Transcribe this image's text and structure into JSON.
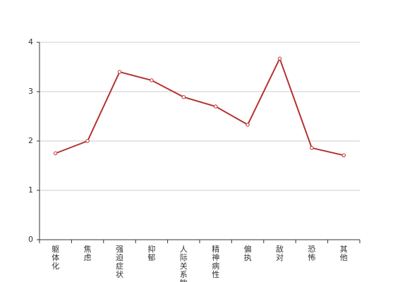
{
  "chart_data": {
    "type": "line",
    "categories": [
      "躯体化",
      "焦虑",
      "强迫症状",
      "抑郁",
      "人际关系敏感",
      "精神病性",
      "偏执",
      "敌对",
      "恐怖",
      "其他"
    ],
    "series": [
      {
        "color": "#b5312f",
        "values": [
          1.75,
          2.0,
          3.4,
          3.23,
          2.89,
          2.7,
          2.33,
          3.67,
          1.86,
          1.71
        ]
      }
    ],
    "ylim": [
      0,
      4
    ],
    "yticks": [
      0,
      1,
      2,
      3,
      4
    ],
    "grid": true
  }
}
